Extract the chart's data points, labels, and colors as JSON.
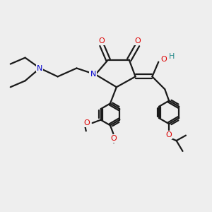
{
  "bg_color": "#eeeeee",
  "atom_colors": {
    "C": "#1a1a1a",
    "N": "#0000cc",
    "O": "#dd0000",
    "H": "#2f8f8f"
  },
  "line_color": "#1a1a1a",
  "line_width": 1.6,
  "figsize": [
    3.0,
    3.0
  ],
  "dpi": 100
}
